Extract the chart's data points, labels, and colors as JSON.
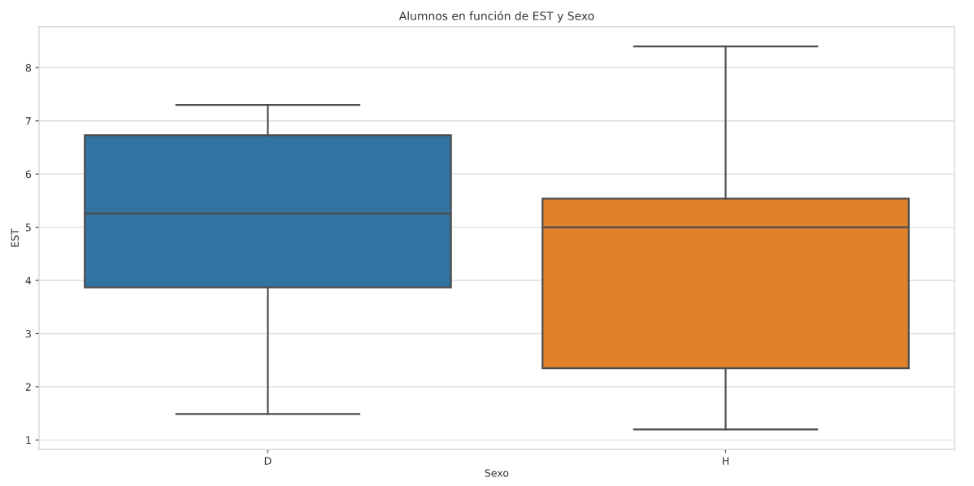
{
  "chart_data": {
    "type": "box",
    "title": "Alumnos en función de EST y Sexo",
    "xlabel": "Sexo",
    "ylabel": "EST",
    "categories": [
      "D",
      "H"
    ],
    "colors": [
      "#3274a1",
      "#e1812c"
    ],
    "boxes": [
      {
        "low": 1.49,
        "q1": 3.87,
        "median": 5.26,
        "q3": 6.73,
        "high": 7.3
      },
      {
        "low": 1.2,
        "q1": 2.35,
        "median": 5.0,
        "q3": 5.54,
        "high": 8.4
      }
    ],
    "ylim": [
      0.82,
      8.77
    ],
    "yticks": [
      1,
      2,
      3,
      4,
      5,
      6,
      7,
      8
    ],
    "grid": "y"
  }
}
